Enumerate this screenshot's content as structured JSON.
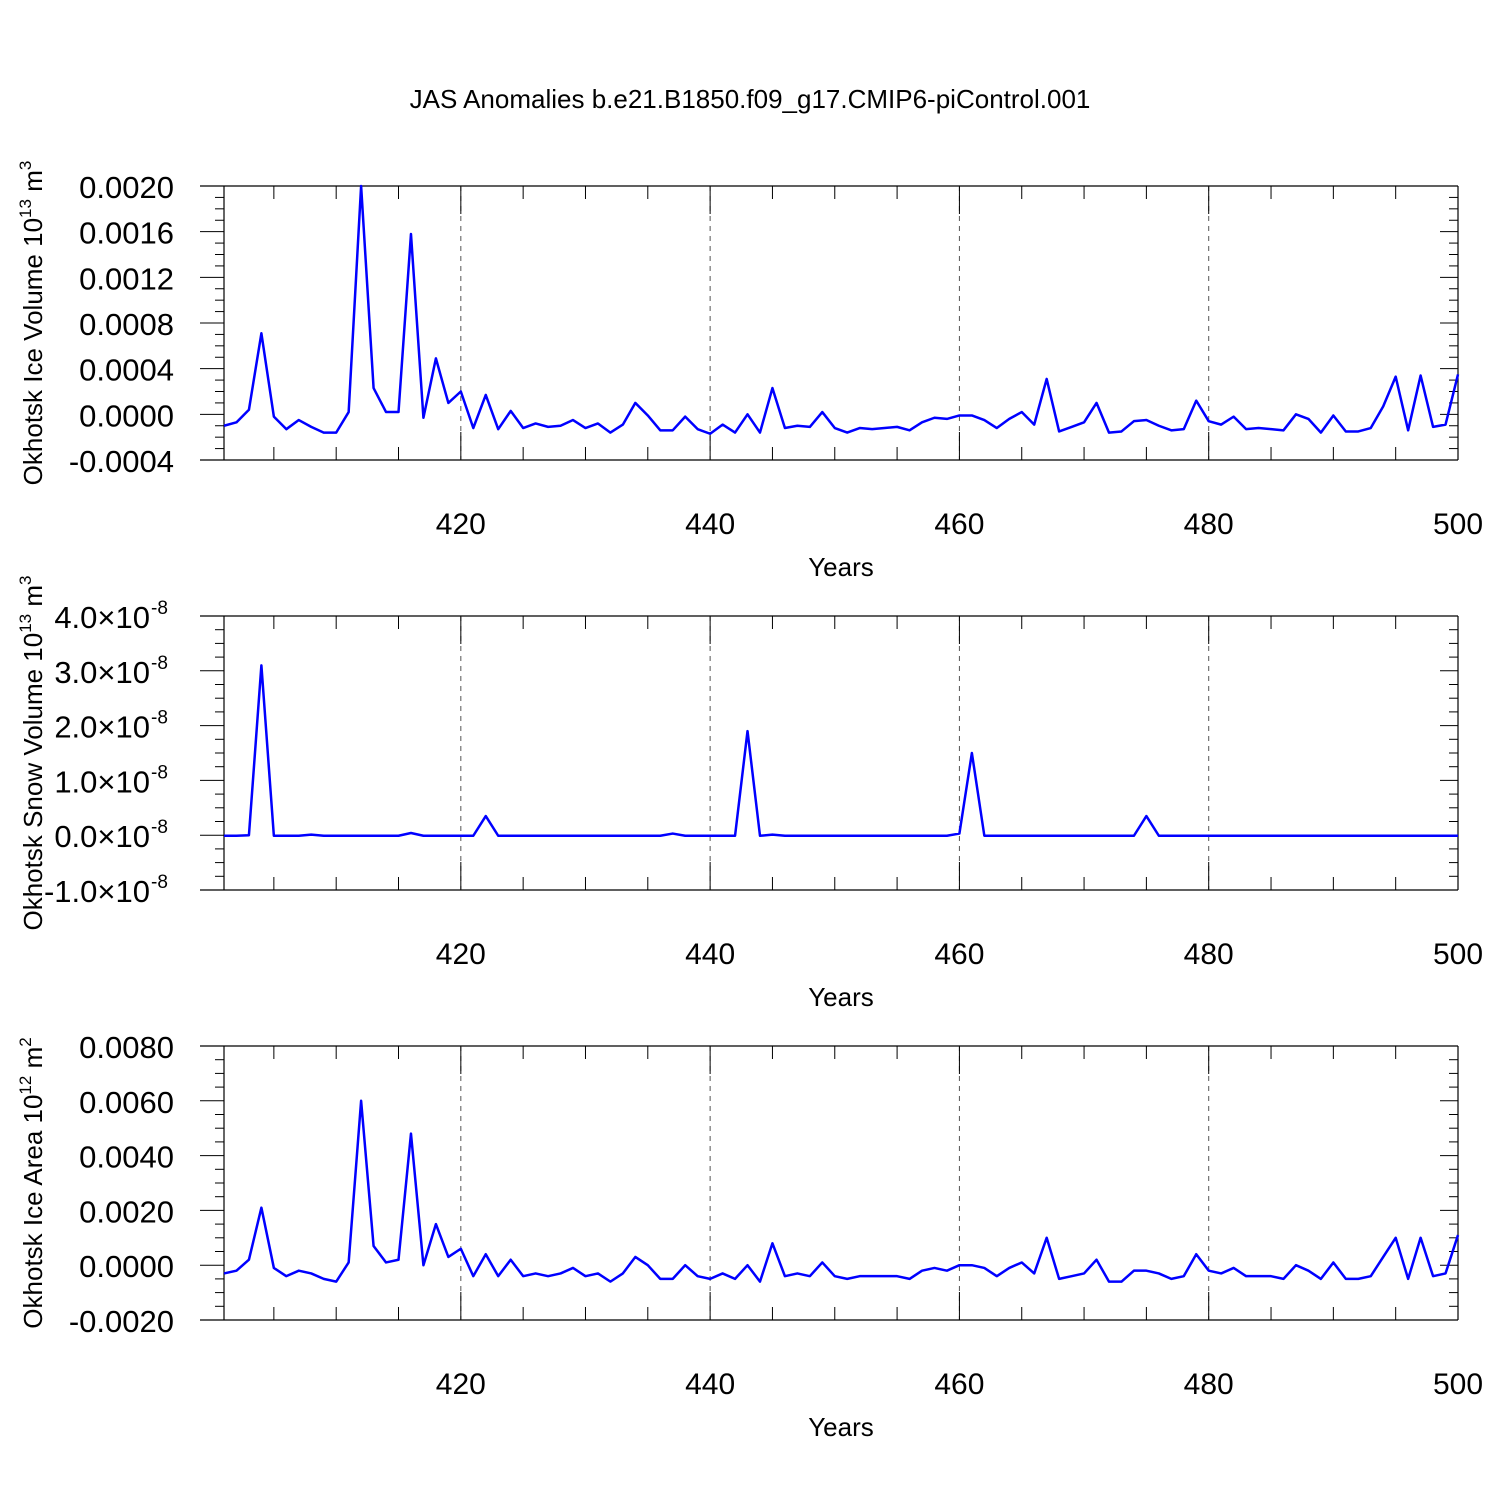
{
  "figure": {
    "title": "JAS Anomalies b.e21.B1850.f09_g17.CMIP6-piControl.001"
  },
  "chart_data": [
    {
      "type": "line",
      "ylabel": "Okhotsk Ice Volume 10",
      "ylabel_exp": "13",
      "ylabel_unit": " m",
      "ylabel_unit_exp": "3",
      "xlabel": "Years",
      "xlim": [
        401,
        500
      ],
      "ylim": [
        -0.0004,
        0.002
      ],
      "yticks": [
        -0.0004,
        0.0,
        0.0004,
        0.0008,
        0.0012,
        0.0016,
        0.002
      ],
      "ytick_labels": [
        "-0.0004",
        "0.0000",
        "0.0004",
        "0.0008",
        "0.0012",
        "0.0016",
        "0.0020"
      ],
      "ytick_exp": "",
      "xticks": [
        420,
        440,
        460,
        480,
        500
      ],
      "xtick_labels": [
        "420",
        "440",
        "460",
        "480",
        "500"
      ],
      "grid": "dashed vertical at major x ticks",
      "color": "#0000ff",
      "x_start": 401,
      "values": [
        -0.0001,
        -7e-05,
        4e-05,
        0.00071,
        -2e-05,
        -0.00013,
        -5e-05,
        -0.00011,
        -0.00016,
        -0.00016,
        2e-05,
        0.002,
        0.00023,
        2e-05,
        2e-05,
        0.00158,
        -3e-05,
        0.00049,
        0.0001,
        0.0002,
        -0.00012,
        0.00017,
        -0.00013,
        3e-05,
        -0.00012,
        -8e-05,
        -0.00011,
        -0.0001,
        -5e-05,
        -0.00012,
        -8e-05,
        -0.00016,
        -9e-05,
        0.0001,
        -1e-05,
        -0.00014,
        -0.00014,
        -2e-05,
        -0.00013,
        -0.00017,
        -9e-05,
        -0.00016,
        0.0,
        -0.00016,
        0.00023,
        -0.00012,
        -0.0001,
        -0.00011,
        2e-05,
        -0.00012,
        -0.00016,
        -0.00012,
        -0.00013,
        -0.00012,
        -0.00011,
        -0.00014,
        -7e-05,
        -3e-05,
        -4e-05,
        -1e-05,
        -1e-05,
        -5e-05,
        -0.00012,
        -4e-05,
        2e-05,
        -9e-05,
        0.00031,
        -0.00015,
        -0.00011,
        -7e-05,
        0.0001,
        -0.00016,
        -0.00015,
        -6e-05,
        -5e-05,
        -0.0001,
        -0.00014,
        -0.00013,
        0.00012,
        -6e-05,
        -9e-05,
        -2e-05,
        -0.00013,
        -0.00012,
        -0.00013,
        -0.00014,
        0.0,
        -4e-05,
        -0.00016,
        -1e-05,
        -0.00015,
        -0.00015,
        -0.00012,
        7e-05,
        0.00033,
        -0.00014,
        0.00034,
        -0.00011,
        -9e-05,
        0.00035
      ]
    },
    {
      "type": "line",
      "ylabel": "Okhotsk Snow Volume 10",
      "ylabel_exp": "13",
      "ylabel_unit": " m",
      "ylabel_unit_exp": "3",
      "xlabel": "Years",
      "xlim": [
        401,
        500
      ],
      "ylim": [
        -1e-08,
        4e-08
      ],
      "yticks": [
        -1e-08,
        0.0,
        1e-08,
        2e-08,
        3e-08,
        4e-08
      ],
      "ytick_labels": [
        "-1.0×10",
        "0.0×10",
        "1.0×10",
        "2.0×10",
        "3.0×10",
        "4.0×10"
      ],
      "ytick_exp": "-8",
      "xticks": [
        420,
        440,
        460,
        480,
        500
      ],
      "xtick_labels": [
        "420",
        "440",
        "460",
        "480",
        "500"
      ],
      "grid": "dashed vertical at major x ticks",
      "color": "#0000ff",
      "x_start": 401,
      "values": [
        -1e-10,
        -1e-10,
        0.0,
        3.1e-08,
        -1e-10,
        -1e-10,
        -1e-10,
        1e-10,
        -1e-10,
        -1e-10,
        -1e-10,
        -1e-10,
        -1e-10,
        -1e-10,
        -1e-10,
        4e-10,
        -1e-10,
        -1e-10,
        -1e-10,
        -1e-10,
        -1e-10,
        3.5e-09,
        -1e-10,
        -1e-10,
        -1e-10,
        -1e-10,
        -1e-10,
        -1e-10,
        -1e-10,
        -1e-10,
        -1e-10,
        -1e-10,
        -1e-10,
        -1e-10,
        -1e-10,
        -1e-10,
        3e-10,
        -1e-10,
        -1e-10,
        -1e-10,
        -1e-10,
        -1e-10,
        1.9e-08,
        -1e-10,
        1e-10,
        -1e-10,
        -1e-10,
        -1e-10,
        -1e-10,
        -1e-10,
        -1e-10,
        -1e-10,
        -1e-10,
        -1e-10,
        -1e-10,
        -1e-10,
        -1e-10,
        -1e-10,
        -1e-10,
        3e-10,
        1.5e-08,
        -1e-10,
        -1e-10,
        -1e-10,
        -1e-10,
        -1e-10,
        -1e-10,
        -1e-10,
        -1e-10,
        -1e-10,
        -1e-10,
        -1e-10,
        -1e-10,
        -1e-10,
        3.5e-09,
        -1e-10,
        -1e-10,
        -1e-10,
        -1e-10,
        -1e-10,
        -1e-10,
        -1e-10,
        -1e-10,
        -1e-10,
        -1e-10,
        -1e-10,
        -1e-10,
        -1e-10,
        -1e-10,
        -1e-10,
        -1e-10,
        -1e-10,
        -1e-10,
        -1e-10,
        -1e-10,
        -1e-10,
        -1e-10,
        -1e-10,
        -1e-10,
        -1e-10
      ]
    },
    {
      "type": "line",
      "ylabel": "Okhotsk Ice Area 10",
      "ylabel_exp": "12",
      "ylabel_unit": " m",
      "ylabel_unit_exp": "2",
      "xlabel": "Years",
      "xlim": [
        401,
        500
      ],
      "ylim": [
        -0.002,
        0.008
      ],
      "yticks": [
        -0.002,
        0.0,
        0.002,
        0.004,
        0.006,
        0.008
      ],
      "ytick_labels": [
        "-0.0020",
        "0.0000",
        "0.0020",
        "0.0040",
        "0.0060",
        "0.0080"
      ],
      "ytick_exp": "",
      "xticks": [
        420,
        440,
        460,
        480,
        500
      ],
      "xtick_labels": [
        "420",
        "440",
        "460",
        "480",
        "500"
      ],
      "grid": "dashed vertical at major x ticks",
      "color": "#0000ff",
      "x_start": 401,
      "values": [
        -0.0003,
        -0.0002,
        0.0002,
        0.0021,
        -0.0001,
        -0.0004,
        -0.0002,
        -0.0003,
        -0.0005,
        -0.0006,
        0.0001,
        0.006,
        0.0007,
        0.0001,
        0.0002,
        0.0048,
        0.0,
        0.0015,
        0.0003,
        0.0006,
        -0.0004,
        0.0004,
        -0.0004,
        0.0002,
        -0.0004,
        -0.0003,
        -0.0004,
        -0.0003,
        -0.0001,
        -0.0004,
        -0.0003,
        -0.0006,
        -0.0003,
        0.0003,
        0.0,
        -0.0005,
        -0.0005,
        0.0,
        -0.0004,
        -0.0005,
        -0.0003,
        -0.0005,
        0.0,
        -0.0006,
        0.0008,
        -0.0004,
        -0.0003,
        -0.0004,
        0.0001,
        -0.0004,
        -0.0005,
        -0.0004,
        -0.0004,
        -0.0004,
        -0.0004,
        -0.0005,
        -0.0002,
        -0.0001,
        -0.0002,
        0.0,
        0.0,
        -0.0001,
        -0.0004,
        -0.0001,
        0.0001,
        -0.0003,
        0.001,
        -0.0005,
        -0.0004,
        -0.0003,
        0.0002,
        -0.0006,
        -0.0006,
        -0.0002,
        -0.0002,
        -0.0003,
        -0.0005,
        -0.0004,
        0.0004,
        -0.0002,
        -0.0003,
        -0.0001,
        -0.0004,
        -0.0004,
        -0.0004,
        -0.0005,
        0.0,
        -0.0002,
        -0.0005,
        0.0001,
        -0.0005,
        -0.0005,
        -0.0004,
        0.0003,
        0.001,
        -0.0005,
        0.001,
        -0.0004,
        -0.0003,
        0.0011
      ]
    }
  ]
}
